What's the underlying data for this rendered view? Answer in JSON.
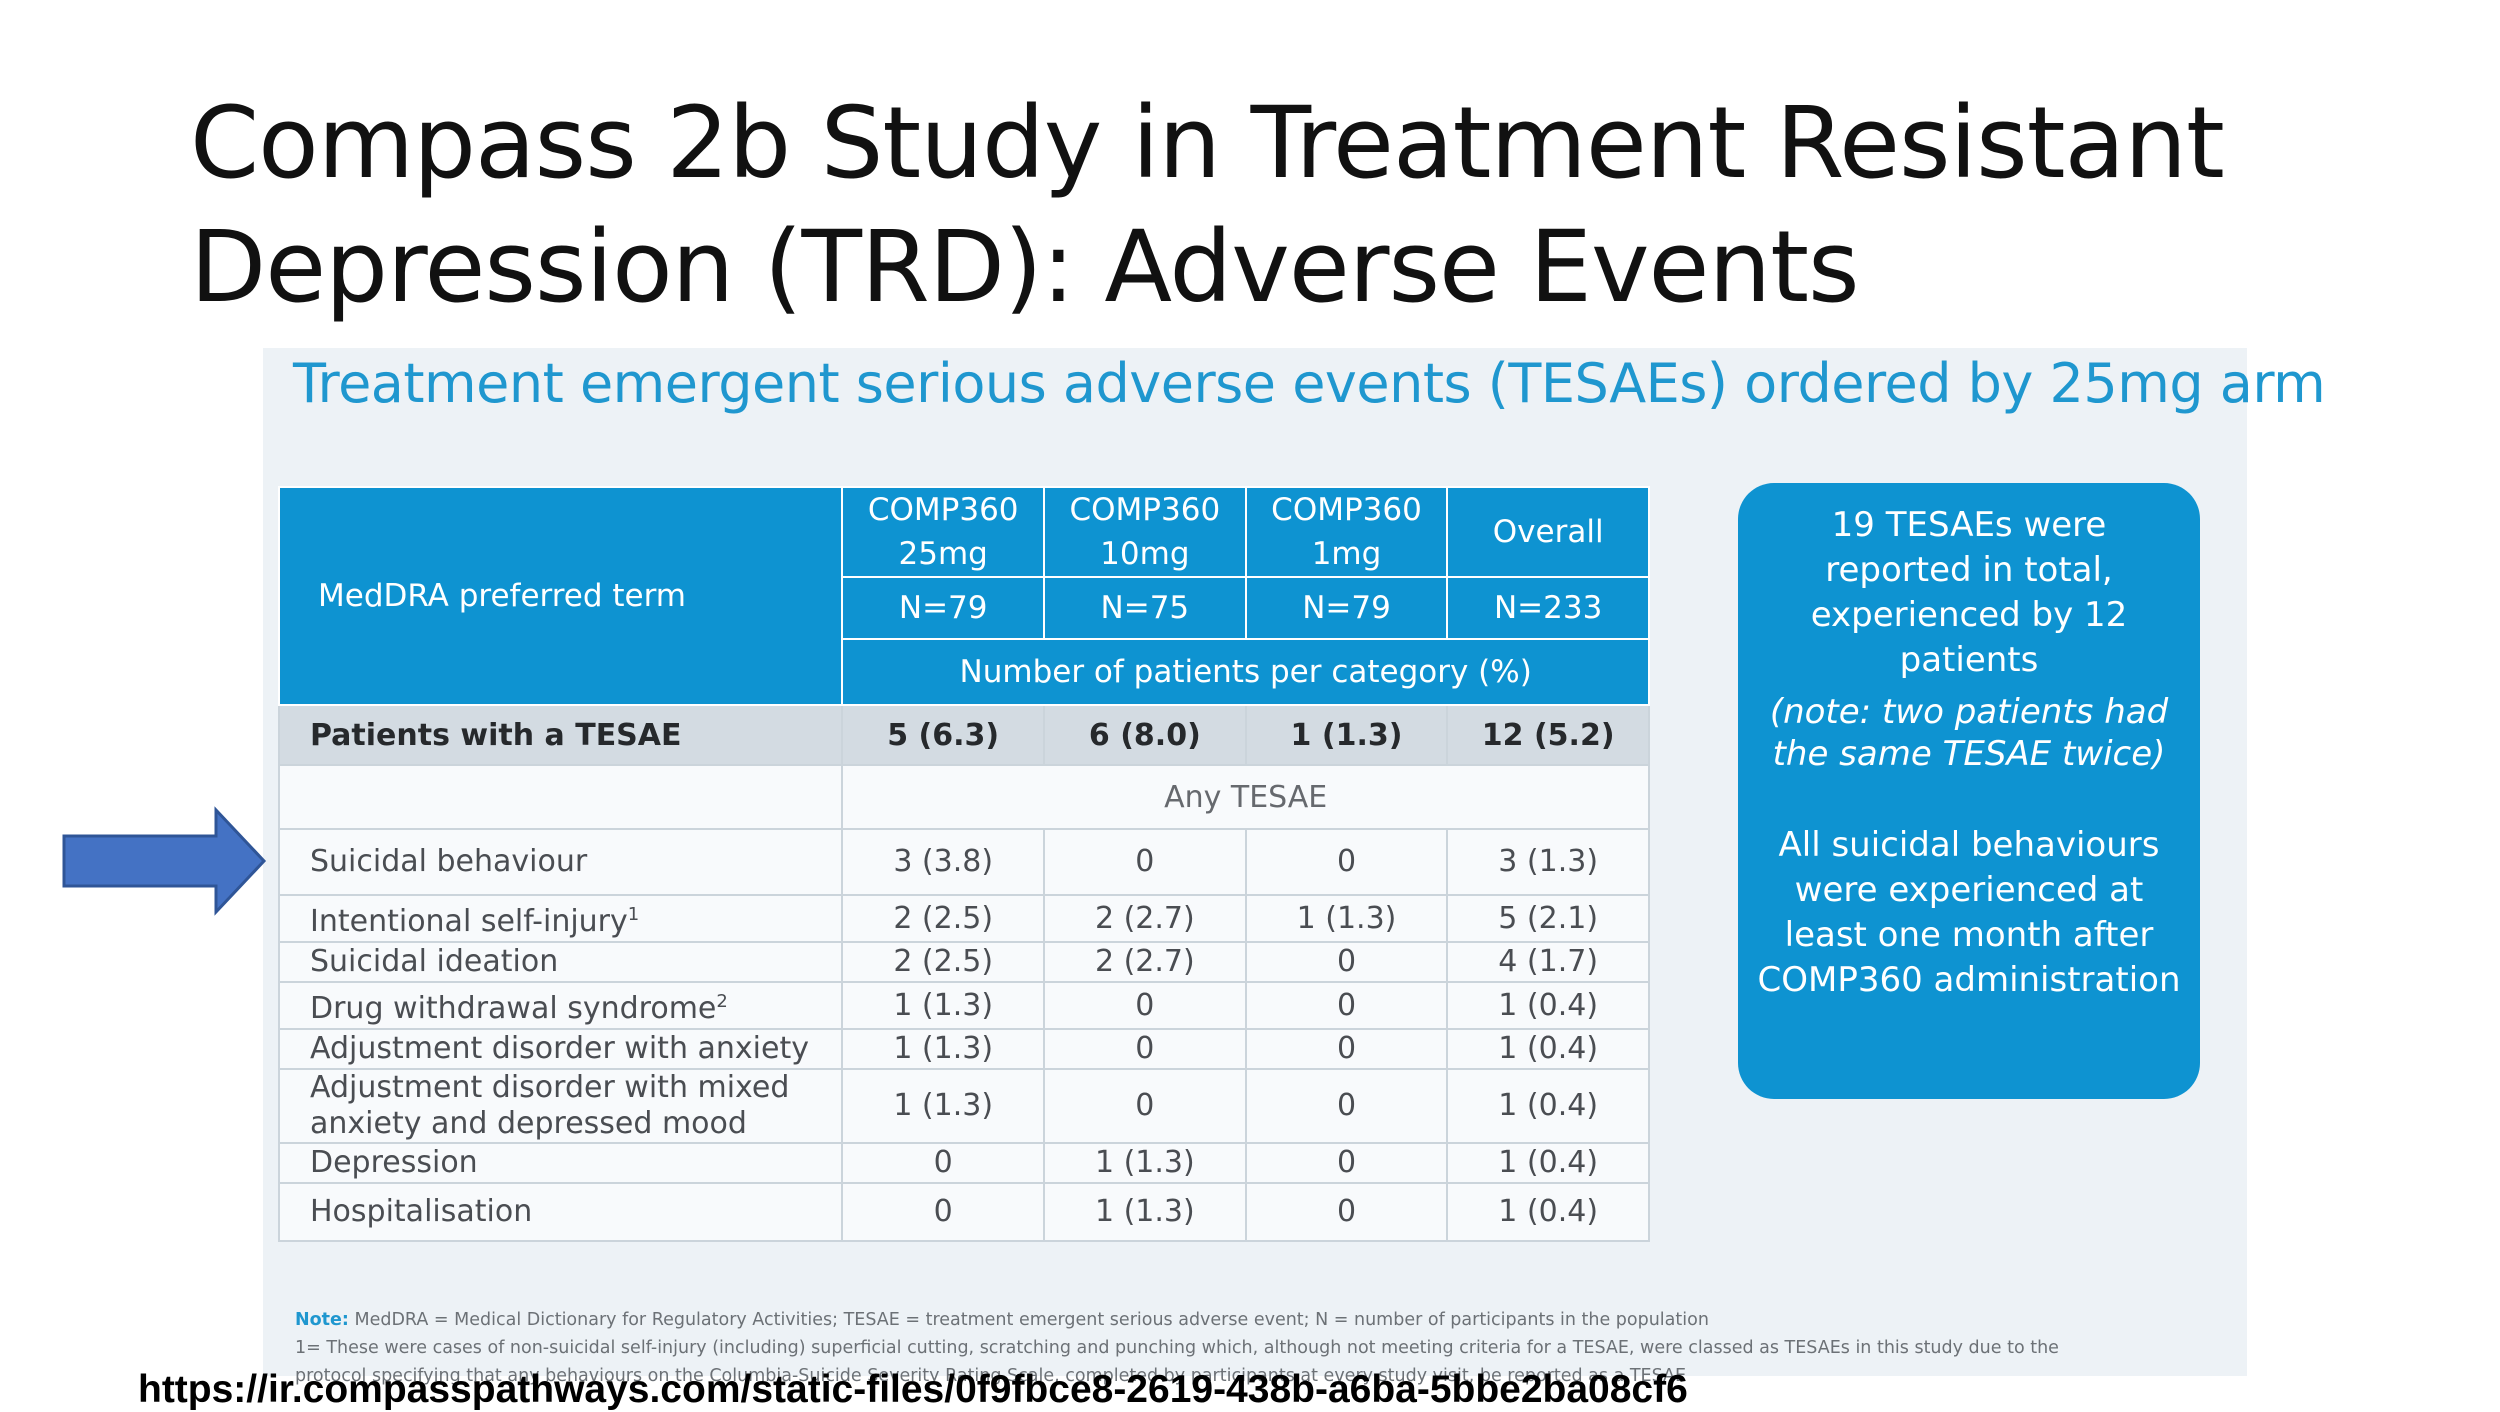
{
  "slide_title": {
    "line1": "Compass 2b Study in Treatment Resistant",
    "line2": "Depression (TRD): Adverse Events"
  },
  "panel": {
    "heading": "Treatment emergent serious adverse events (TESAEs) ordered by 25mg arm"
  },
  "table": {
    "term_header": "MedDRA preferred term",
    "columns": [
      {
        "line1": "COMP360",
        "line2": "25mg",
        "n": "N=79"
      },
      {
        "line1": "COMP360",
        "line2": "10mg",
        "n": "N=75"
      },
      {
        "line1": "COMP360",
        "line2": "1mg",
        "n": "N=79"
      },
      {
        "line1": "Overall",
        "line2": "",
        "n": "N=233"
      }
    ],
    "unit_label": "Number of patients per category (%)",
    "summary": {
      "term": "Patients with a TESAE",
      "values": [
        "5 (6.3)",
        "6 (8.0)",
        "1 (1.3)",
        "12 (5.2)"
      ]
    },
    "any_label": "Any TESAE",
    "rows": [
      {
        "term": "Suicidal behaviour",
        "values": [
          "3 (3.8)",
          "0",
          "0",
          "3 (1.3)"
        ]
      },
      {
        "term": "Intentional self-injury",
        "sup": "1",
        "values": [
          "2 (2.5)",
          "2 (2.7)",
          "1 (1.3)",
          "5 (2.1)"
        ]
      },
      {
        "term": "Suicidal ideation",
        "values": [
          "2 (2.5)",
          "2 (2.7)",
          "0",
          "4 (1.7)"
        ]
      },
      {
        "term": "Drug withdrawal syndrome",
        "sup": "2",
        "values": [
          "1 (1.3)",
          "0",
          "0",
          "1 (0.4)"
        ]
      },
      {
        "term": "Adjustment disorder with anxiety",
        "values": [
          "1 (1.3)",
          "0",
          "0",
          "1 (0.4)"
        ]
      },
      {
        "term": "Adjustment disorder with mixed anxiety and depressed mood",
        "values": [
          "1 (1.3)",
          "0",
          "0",
          "1 (0.4)"
        ]
      },
      {
        "term": "Depression",
        "values": [
          "0",
          "1 (1.3)",
          "0",
          "1 (0.4)"
        ]
      },
      {
        "term": "Hospitalisation",
        "values": [
          "0",
          "1 (1.3)",
          "0",
          "1 (0.4)"
        ]
      }
    ]
  },
  "callout": {
    "summary": "19 TESAEs were reported in total, experienced by 12 patients",
    "note": "(note: two patients had the same TESAE twice)",
    "statement": "All suicidal behaviours were experienced at least one month after COMP360 administration"
  },
  "notes": {
    "key": "Note:",
    "line1": "MedDRA = Medical Dictionary for Regulatory Activities; TESAE = treatment emergent serious adverse event; N = number of participants in the population",
    "line2": "1= These were cases of non-suicidal self-injury (including) superficial cutting, scratching and punching which, although not meeting criteria for a TESAE, were classed as TESAEs in this study due to the",
    "line3": "protocol specifying that any behaviours on the Columbia-Suicide Severity Rating Scale, completed by participants at every study visit, be reported as a TESAE"
  },
  "source_url": "https://ir.compasspathways.com/static-files/0f9fbce8-2619-438b-a6ba-5bbe2ba08cf6",
  "colors": {
    "accent_blue": "#0e93d1",
    "heading_blue": "#1f97cf",
    "arrow_fill": "#4472c4",
    "arrow_stroke": "#2f5597"
  }
}
